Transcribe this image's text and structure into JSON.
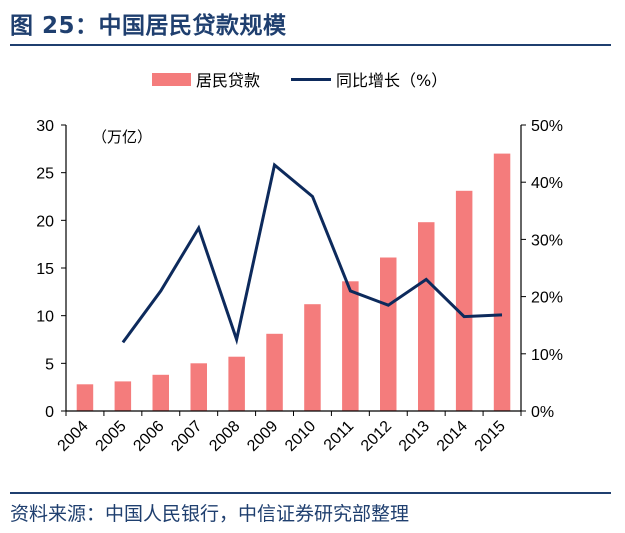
{
  "header": {
    "title": "图 25：中国居民贷款规模"
  },
  "footer": {
    "source": "资料来源：中国人民银行，中信证券研究部整理"
  },
  "chart_data": {
    "type": "bar",
    "title": "图 25：中国居民贷款规模",
    "categories": [
      "2004",
      "2005",
      "2006",
      "2007",
      "2008",
      "2009",
      "2010",
      "2011",
      "2012",
      "2013",
      "2014",
      "2015"
    ],
    "unit_label": "（万亿）",
    "series": [
      {
        "name": "居民贷款",
        "type": "bar",
        "axis": "left",
        "color": "#f47c7c",
        "values": [
          2.8,
          3.1,
          3.8,
          5.0,
          5.7,
          8.1,
          11.2,
          13.6,
          16.1,
          19.8,
          23.1,
          27.0
        ]
      },
      {
        "name": "同比增长（%）",
        "type": "line",
        "axis": "right",
        "color": "#0d2a5c",
        "values": [
          null,
          12,
          21,
          32,
          12.5,
          43,
          37.5,
          21,
          18.5,
          23,
          16.5,
          16.8
        ]
      }
    ],
    "left_axis": {
      "min": 0,
      "max": 30,
      "ticks": [
        "0",
        "5",
        "10",
        "15",
        "20",
        "25",
        "30"
      ]
    },
    "right_axis": {
      "min": 0,
      "max": 50,
      "ticks": [
        "0%",
        "10%",
        "20%",
        "30%",
        "40%",
        "50%"
      ]
    },
    "legend": {
      "position": "top-center",
      "entries": [
        "居民贷款",
        "同比增长（%）"
      ]
    }
  }
}
